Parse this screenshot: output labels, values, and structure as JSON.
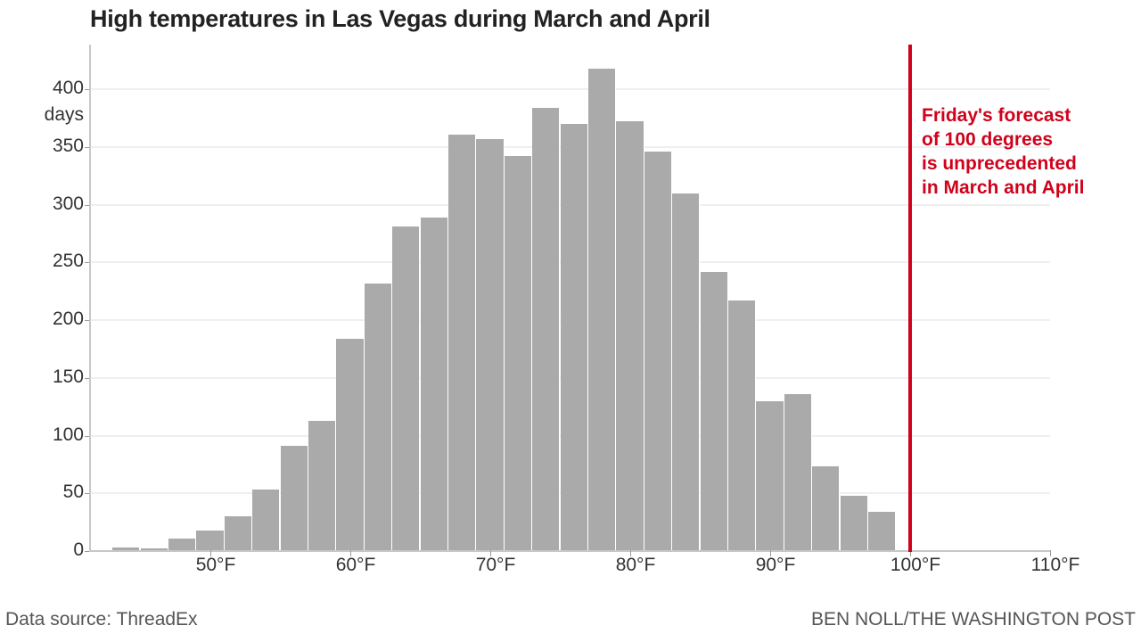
{
  "title": "High temperatures in Las Vegas during March and April",
  "y_unit_label": "days",
  "annotation": {
    "lines": [
      "Friday's forecast",
      "of 100 degrees",
      "is unprecedented",
      "in March and April"
    ],
    "color": "#d0021b",
    "x_value": 100
  },
  "footer": {
    "source": "Data source: ThreadEx",
    "credit": "BEN NOLL/THE WASHINGTON POST"
  },
  "colors": {
    "bar": "#aaaaaa",
    "highlight_line": "#d0021b",
    "grid": "#efefef"
  },
  "chart_data": {
    "type": "bar",
    "title": "High temperatures in Las Vegas during March and April",
    "xlabel": "",
    "ylabel": "days",
    "bin_width_f": 2,
    "categories": [
      "43-45",
      "45-47",
      "47-49",
      "49-51",
      "51-53",
      "53-55",
      "55-57",
      "57-59",
      "59-61",
      "61-63",
      "63-65",
      "65-67",
      "67-69",
      "69-71",
      "71-73",
      "73-75",
      "75-77",
      "77-79",
      "79-81",
      "81-83",
      "83-85",
      "85-87",
      "87-89",
      "89-91",
      "91-93",
      "93-95",
      "95-97",
      "97-99"
    ],
    "bin_starts": [
      43,
      45,
      47,
      49,
      51,
      53,
      55,
      57,
      59,
      61,
      63,
      65,
      67,
      69,
      71,
      73,
      75,
      77,
      79,
      81,
      83,
      85,
      87,
      89,
      91,
      93,
      95,
      97
    ],
    "values": [
      3,
      2,
      11,
      18,
      30,
      53,
      91,
      113,
      184,
      232,
      281,
      289,
      361,
      357,
      342,
      384,
      370,
      418,
      372,
      346,
      310,
      242,
      217,
      130,
      136,
      73,
      48,
      34
    ],
    "x_ticks": [
      "50°F",
      "60°F",
      "70°F",
      "80°F",
      "90°F",
      "100°F",
      "110°F"
    ],
    "x_tick_values": [
      50,
      60,
      70,
      80,
      90,
      100,
      110
    ],
    "y_ticks": [
      "0",
      "50",
      "100",
      "150",
      "200",
      "250",
      "300",
      "350",
      "400"
    ],
    "y_tick_values": [
      0,
      50,
      100,
      150,
      200,
      250,
      300,
      350,
      400
    ],
    "xlim": [
      41.5,
      110
    ],
    "ylim": [
      0,
      440
    ],
    "grid": true,
    "legend": null,
    "annotations": [
      {
        "type": "vline",
        "x": 100,
        "color": "#d0021b",
        "text": "Friday's forecast of 100 degrees is unprecedented in March and April"
      }
    ]
  }
}
